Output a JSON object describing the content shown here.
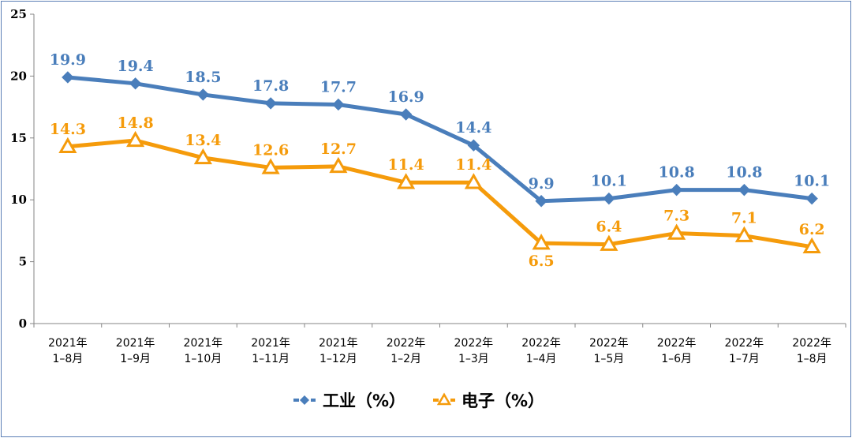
{
  "chart_data": {
    "type": "line",
    "categories": [
      [
        "2021年",
        "1–8月"
      ],
      [
        "2021年",
        "1–9月"
      ],
      [
        "2021年",
        "1–10月"
      ],
      [
        "2021年",
        "1–11月"
      ],
      [
        "2021年",
        "1–12月"
      ],
      [
        "2022年",
        "1–2月"
      ],
      [
        "2022年",
        "1–3月"
      ],
      [
        "2022年",
        "1–4月"
      ],
      [
        "2022年",
        "1–5月"
      ],
      [
        "2022年",
        "1–6月"
      ],
      [
        "2022年",
        "1–7月"
      ],
      [
        "2022年",
        "1–8月"
      ]
    ],
    "series": [
      {
        "name": "工业（%）",
        "color": "#4a7ebb",
        "marker": "diamond",
        "values": [
          19.9,
          19.4,
          18.5,
          17.8,
          17.7,
          16.9,
          14.4,
          9.9,
          10.1,
          10.8,
          10.8,
          10.1
        ],
        "labels": [
          "19.9",
          "19.4",
          "18.5",
          "17.8",
          "17.7",
          "16.9",
          "14.4",
          "9.9",
          "10.1",
          "10.8",
          "10.8",
          "10.1"
        ]
      },
      {
        "name": "电子（%）",
        "color": "#f59b0b",
        "marker": "triangle",
        "values": [
          14.3,
          14.8,
          13.4,
          12.6,
          12.7,
          11.4,
          11.4,
          6.5,
          6.4,
          7.3,
          7.1,
          6.2
        ],
        "labels": [
          "14.3",
          "14.8",
          "13.4",
          "12.6",
          "12.7",
          "11.4",
          "11.4",
          "6.5",
          "6.4",
          "7.3",
          "7.1",
          "6.2"
        ]
      }
    ],
    "ylim": [
      0,
      25
    ],
    "yticks": [
      "0",
      "5",
      "10",
      "15",
      "20",
      "25"
    ],
    "grid": false,
    "legend": "bottom"
  }
}
